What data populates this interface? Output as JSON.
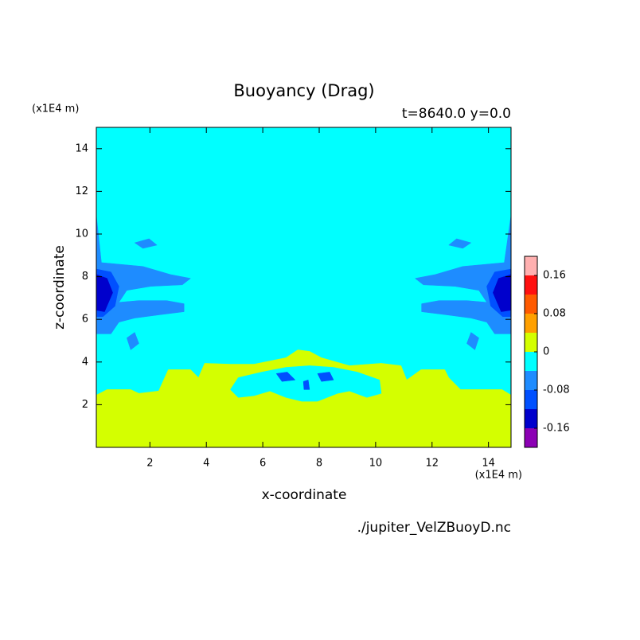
{
  "chart_data": {
    "type": "contour",
    "title": "Buoyancy (Drag)",
    "subtitle": "t=8640.0 y=0.0",
    "x_label": "x-coordinate",
    "y_label": "z-coordinate",
    "x_unit": "(x1E4 m)",
    "y_unit": "(x1E4 m)",
    "source": "./jupiter_VelZBuoyD.nc",
    "xlim": [
      0.1,
      14.8
    ],
    "ylim": [
      0,
      15
    ],
    "xticks": [
      2,
      4,
      6,
      8,
      10,
      12,
      14
    ],
    "yticks": [
      2,
      4,
      6,
      8,
      10,
      12,
      14
    ],
    "levels": [
      0.2,
      0.16,
      0.12,
      0.08,
      0.04,
      0,
      -0.04,
      -0.08,
      -0.12,
      -0.16,
      -0.2
    ],
    "colors": [
      "#ffb0b0",
      "#ff1010",
      "#ff5a00",
      "#ffa000",
      "#d4ff00",
      "#00ffff",
      "#1e8cff",
      "#0050ff",
      "#0000cc",
      "#8c00b4"
    ],
    "colorbar_ticks": [
      0.16,
      0.08,
      0,
      -0.08,
      -0.16
    ],
    "background_color": "#00ffff",
    "regions": [
      {
        "color": "#d4ff00",
        "x": [
          0.1,
          0.48,
          1.32,
          1.61,
          2.31,
          2.65,
          3.44,
          3.72,
          3.94,
          4.85,
          5.69,
          6.82,
          7.24,
          7.66,
          8.08,
          9.07,
          10.2,
          10.9,
          11.1,
          11.61,
          12.45,
          12.59,
          13.01,
          14.48,
          14.8,
          14.8,
          0.1
        ],
        "y": [
          2.45,
          2.71,
          2.71,
          2.53,
          2.64,
          3.64,
          3.64,
          3.27,
          3.94,
          3.9,
          3.9,
          4.2,
          4.57,
          4.5,
          4.2,
          3.83,
          3.94,
          3.83,
          3.16,
          3.64,
          3.64,
          3.27,
          2.71,
          2.71,
          2.45,
          0,
          0
        ]
      },
      {
        "color": "#00ffff",
        "x": [
          4.85,
          5.13,
          5.97,
          6.82,
          7.66,
          8.51,
          9.35,
          10.14,
          10.2,
          9.69,
          9.07,
          8.65,
          7.94,
          7.38,
          6.82,
          6.25,
          5.69,
          5.13
        ],
        "y": [
          2.71,
          3.27,
          3.53,
          3.75,
          3.83,
          3.75,
          3.53,
          3.16,
          2.53,
          2.34,
          2.64,
          2.53,
          2.16,
          2.16,
          2.34,
          2.64,
          2.42,
          2.34
        ]
      },
      {
        "color": "#0050ff",
        "x": [
          6.48,
          6.87,
          7.15,
          6.68
        ],
        "y": [
          3.46,
          3.53,
          3.16,
          3.09
        ]
      },
      {
        "color": "#0050ff",
        "x": [
          7.94,
          8.37,
          8.51,
          8.08
        ],
        "y": [
          3.46,
          3.53,
          3.16,
          3.09
        ]
      },
      {
        "color": "#0050ff",
        "x": [
          7.44,
          7.61,
          7.66,
          7.46
        ],
        "y": [
          3.09,
          3.16,
          2.71,
          2.71
        ]
      },
      {
        "color": "#1e8cff",
        "x": [
          0.1,
          0.28,
          1.75,
          2.73,
          3.44,
          3.15,
          2.03,
          1.18,
          0.9,
          1.61,
          2.59,
          3.21,
          3.21,
          2.31,
          1.46,
          0.9,
          0.62,
          0.1
        ],
        "y": [
          10.89,
          8.66,
          8.48,
          8.1,
          7.92,
          7.62,
          7.55,
          7.36,
          6.8,
          6.88,
          6.88,
          6.73,
          6.36,
          6.21,
          6.06,
          5.87,
          5.32,
          5.32
        ]
      },
      {
        "color": "#1e8cff",
        "x": [
          14.8,
          14.56,
          13.09,
          12.11,
          11.4,
          11.69,
          12.81,
          13.66,
          13.94,
          13.23,
          12.25,
          11.63,
          11.63,
          12.53,
          13.38,
          13.94,
          14.22,
          14.8
        ],
        "y": [
          10.89,
          8.66,
          8.48,
          8.1,
          7.92,
          7.62,
          7.55,
          7.36,
          6.8,
          6.88,
          6.88,
          6.73,
          6.36,
          6.21,
          6.06,
          5.87,
          5.32,
          5.32
        ]
      },
      {
        "color": "#1e8cff",
        "x": [
          1.46,
          1.97,
          2.25,
          1.75
        ],
        "y": [
          9.59,
          9.78,
          9.48,
          9.33
        ]
      },
      {
        "color": "#1e8cff",
        "x": [
          13.38,
          12.87,
          12.59,
          13.09
        ],
        "y": [
          9.59,
          9.78,
          9.48,
          9.33
        ]
      },
      {
        "color": "#1e8cff",
        "x": [
          1.18,
          1.46,
          1.61,
          1.32
        ],
        "y": [
          5.13,
          5.39,
          4.87,
          4.57
        ]
      },
      {
        "color": "#1e8cff",
        "x": [
          13.66,
          13.38,
          13.23,
          13.52
        ],
        "y": [
          5.13,
          5.39,
          4.87,
          4.57
        ]
      },
      {
        "color": "#0050ff",
        "x": [
          0.1,
          0.62,
          0.9,
          0.76,
          0.34,
          0.1
        ],
        "y": [
          8.36,
          8.22,
          7.55,
          6.62,
          6.13,
          6.13
        ]
      },
      {
        "color": "#0050ff",
        "x": [
          14.8,
          14.22,
          13.94,
          14.08,
          14.5,
          14.8
        ],
        "y": [
          8.36,
          8.22,
          7.55,
          6.62,
          6.13,
          6.13
        ]
      },
      {
        "color": "#0000cc",
        "x": [
          0.1,
          0.48,
          0.68,
          0.39,
          0.1
        ],
        "y": [
          8.1,
          7.92,
          7.25,
          6.36,
          6.43
        ]
      },
      {
        "color": "#0000cc",
        "x": [
          14.8,
          14.36,
          14.16,
          14.45,
          14.8
        ],
        "y": [
          8.1,
          7.92,
          7.25,
          6.36,
          6.43
        ]
      }
    ]
  }
}
